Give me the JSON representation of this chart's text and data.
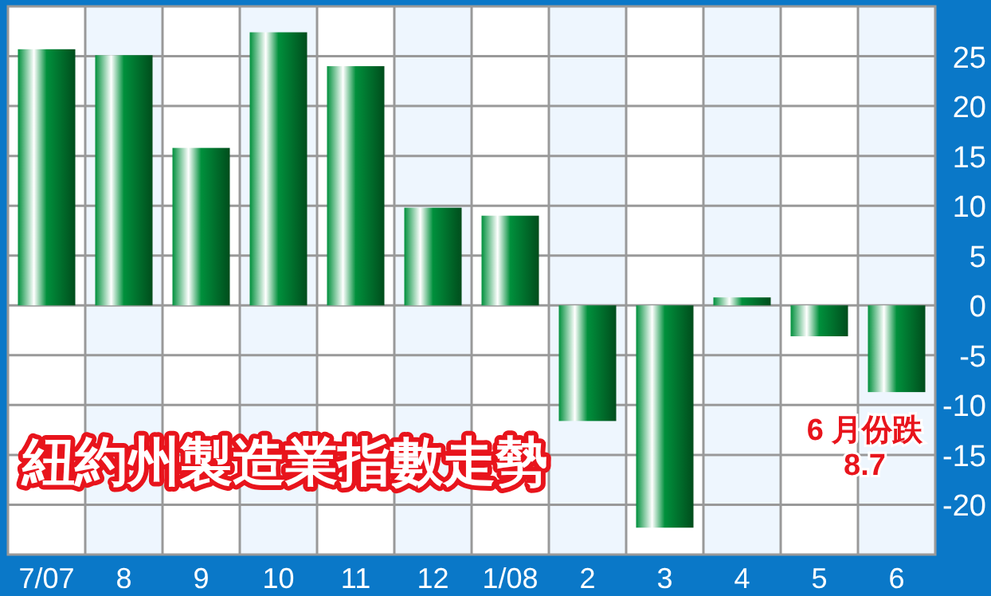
{
  "chart_data": {
    "type": "bar",
    "title": "紐約州製造業指數走勢",
    "categories": [
      "7/07",
      "8",
      "9",
      "10",
      "11",
      "12",
      "1/08",
      "2",
      "3",
      "4",
      "5",
      "6"
    ],
    "values": [
      25.7,
      25.1,
      15.8,
      27.4,
      24.0,
      9.8,
      9.0,
      -11.6,
      -22.3,
      0.8,
      -3.1,
      -8.7
    ],
    "color": "#00903c",
    "ylim": [
      -25,
      30
    ],
    "yticks": [
      -20,
      -15,
      -10,
      -5,
      0,
      5,
      10,
      15,
      20,
      25
    ],
    "grid": true,
    "annotations": [
      {
        "text": "6 月份跌\n8.7",
        "x": "6",
        "y": -8.7
      }
    ]
  }
}
